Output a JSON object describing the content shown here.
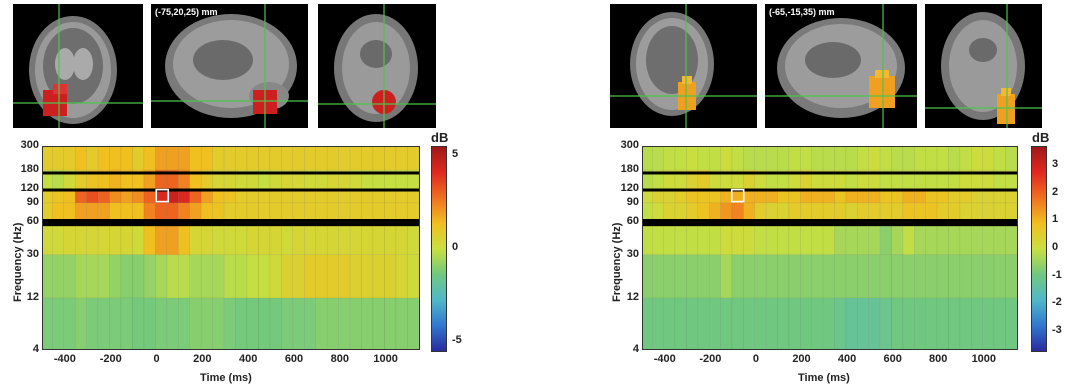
{
  "panels": [
    {
      "mri_coord": "(-75,20,25) mm",
      "chart_data": {
        "type": "heatmap",
        "ylabel": "Frequency (Hz)",
        "xlabel": "Time (ms)",
        "xticks": [
          "-400",
          "-200",
          "0",
          "200",
          "400",
          "600",
          "800",
          "1000"
        ],
        "xtick_values": [
          -400,
          -200,
          0,
          200,
          400,
          600,
          800,
          1000
        ],
        "yticks": [
          "4",
          "12",
          "30",
          "60",
          "90",
          "120",
          "180",
          "300"
        ],
        "yscale": "log",
        "xlim": [
          -500,
          1150
        ],
        "ylim": [
          4,
          300
        ],
        "colorbar_label": "dB",
        "colorbar_ticks": [
          "5",
          "0",
          "-5"
        ],
        "colorbar_values": [
          5,
          0,
          -5
        ],
        "clim": [
          -5.5,
          5.5
        ],
        "highlight": {
          "time_ms": 25,
          "freq_hz": 105
        },
        "masked_bands_hz": [
          [
            165,
            175
          ],
          [
            115,
            122
          ],
          [
            55,
            64
          ]
        ],
        "time_bins": [
          -480,
          -430,
          -380,
          -330,
          -280,
          -230,
          -180,
          -130,
          -80,
          -30,
          20,
          70,
          120,
          170,
          220,
          270,
          320,
          370,
          420,
          470,
          520,
          570,
          620,
          670,
          720,
          770,
          820,
          870,
          920,
          970,
          1020,
          1070,
          1120
        ],
        "freq_bins": [
          300,
          180,
          120,
          90,
          60,
          30,
          12,
          4
        ],
        "values": [
          [
            1.5,
            1.5,
            1.5,
            2,
            1.5,
            2,
            2,
            2,
            1.5,
            2,
            2.5,
            2.5,
            2.5,
            2,
            2,
            1.5,
            1.5,
            1.5,
            1.5,
            1.5,
            1.5,
            1.5,
            1.5,
            1.5,
            1.5,
            1.5,
            1.5,
            1.5,
            1.5,
            1.5,
            1.5,
            1.5,
            1.5
          ],
          [
            0.5,
            0.3,
            0.8,
            1.5,
            1.8,
            2,
            2.2,
            2,
            2,
            2.5,
            3.5,
            3.5,
            3,
            2,
            1.5,
            1,
            1,
            0.8,
            0.8,
            0.5,
            0.8,
            1,
            1,
            0.8,
            0.8,
            1,
            1,
            0.8,
            0.5,
            0.5,
            0.5,
            0.5,
            0.5
          ],
          [
            1.5,
            1.8,
            2,
            3.5,
            3.8,
            3.5,
            2.8,
            2.5,
            2.8,
            3.5,
            4.5,
            4.8,
            4.5,
            3.5,
            2.5,
            2,
            1.8,
            1.5,
            1.5,
            1.5,
            1.5,
            1.5,
            1.5,
            1.5,
            1.5,
            1.5,
            1.5,
            1.5,
            1.5,
            1.5,
            1.5,
            1.5,
            1.5
          ],
          [
            1.5,
            2,
            2,
            2.5,
            2.5,
            2.5,
            2,
            2,
            2,
            3,
            3.5,
            3.5,
            3,
            2.5,
            2,
            1.8,
            1.5,
            1.5,
            1.5,
            1.5,
            1.5,
            1.5,
            1.5,
            1.5,
            1.5,
            1.5,
            1.5,
            1.5,
            1.5,
            1.5,
            1.5,
            1.5,
            1.5
          ],
          [
            0.8,
            0.8,
            1,
            1,
            1,
            1,
            1,
            1,
            0.8,
            2,
            2.5,
            2.5,
            2,
            1,
            1,
            0.8,
            0.8,
            0.8,
            1,
            1,
            1,
            0.8,
            1,
            1,
            1,
            1,
            1,
            1,
            1,
            1,
            1,
            1,
            0.8
          ],
          [
            -0.3,
            -0.3,
            -0.3,
            0,
            0,
            0,
            -0.3,
            -0.5,
            -0.5,
            -0.3,
            0,
            0.3,
            0.3,
            0,
            0,
            0,
            0.3,
            0.3,
            0.5,
            0.5,
            0.8,
            1.2,
            1.2,
            1.5,
            1.5,
            1.5,
            1.5,
            1.3,
            1.2,
            1.2,
            1.2,
            1,
            0.8
          ],
          [
            -0.7,
            -0.7,
            -0.7,
            -0.5,
            -0.7,
            -0.7,
            -0.7,
            -0.7,
            -0.8,
            -0.8,
            -0.7,
            -0.7,
            -0.7,
            -0.5,
            -0.5,
            -0.5,
            -0.7,
            -0.8,
            -0.8,
            -0.8,
            -0.8,
            -0.7,
            -0.7,
            -0.7,
            -0.5,
            -0.5,
            -0.5,
            -0.5,
            -0.5,
            -0.5,
            -0.5,
            -0.5,
            -0.5
          ]
        ]
      }
    },
    {
      "mri_coord": "(-65,-15,35) mm",
      "chart_data": {
        "type": "heatmap",
        "ylabel": "Frequency (Hz)",
        "xlabel": "Time (ms)",
        "xticks": [
          "-400",
          "-200",
          "0",
          "200",
          "400",
          "600",
          "800",
          "1000"
        ],
        "xtick_values": [
          -400,
          -200,
          0,
          200,
          400,
          600,
          800,
          1000
        ],
        "yticks": [
          "4",
          "12",
          "30",
          "60",
          "90",
          "120",
          "180",
          "300"
        ],
        "yscale": "log",
        "xlim": [
          -500,
          1150
        ],
        "ylim": [
          4,
          300
        ],
        "colorbar_label": "dB",
        "colorbar_ticks": [
          "3",
          "2",
          "1",
          "0",
          "-1",
          "-2",
          "-3"
        ],
        "colorbar_values": [
          3,
          2,
          1,
          0,
          -1,
          -2,
          -3
        ],
        "clim": [
          -3.7,
          3.7
        ],
        "highlight": {
          "time_ms": -80,
          "freq_hz": 105
        },
        "masked_bands_hz": [
          [
            165,
            175
          ],
          [
            115,
            122
          ],
          [
            55,
            64
          ]
        ],
        "time_bins": [
          -480,
          -430,
          -380,
          -330,
          -280,
          -230,
          -180,
          -130,
          -80,
          -30,
          20,
          70,
          120,
          170,
          220,
          270,
          320,
          370,
          420,
          470,
          520,
          570,
          620,
          670,
          720,
          770,
          820,
          870,
          920,
          970,
          1020,
          1070,
          1120
        ],
        "freq_bins": [
          300,
          180,
          120,
          90,
          60,
          30,
          12,
          4
        ],
        "values": [
          [
            0.2,
            0.2,
            0.3,
            0.3,
            0.4,
            0.3,
            0.3,
            0.5,
            0.3,
            0.2,
            0.2,
            0.2,
            0.2,
            0.3,
            0.3,
            0.2,
            0.2,
            0.2,
            0.2,
            0.3,
            0.5,
            0.3,
            0.2,
            0.2,
            0.3,
            0.3,
            0.3,
            0.2,
            0.3,
            0.5,
            0.5,
            0.3,
            0.2
          ],
          [
            0.2,
            0.3,
            0.5,
            0.5,
            0.8,
            1,
            0.5,
            0.5,
            0.5,
            0.8,
            0.5,
            0.3,
            0.3,
            0.5,
            0.8,
            0.5,
            0.5,
            0.5,
            0.3,
            0.5,
            0.5,
            0.3,
            0.3,
            0.3,
            0.3,
            0.3,
            0.3,
            0.3,
            0.5,
            0.5,
            0.5,
            0.3,
            0.3
          ],
          [
            0.5,
            0.8,
            0.8,
            1,
            1.2,
            1.2,
            1.2,
            1.5,
            1.5,
            1.5,
            1.5,
            1.5,
            1.2,
            1.2,
            1.5,
            1.5,
            1.5,
            1.2,
            1.5,
            1.5,
            1.5,
            1.2,
            1.2,
            1.5,
            1.5,
            1.2,
            1.2,
            1,
            1,
            0.8,
            0.8,
            0.8,
            0.8
          ],
          [
            0.3,
            0.5,
            0.8,
            0.8,
            1,
            1.2,
            1.5,
            1.8,
            2,
            1.5,
            1,
            0.8,
            0.8,
            1,
            1,
            1,
            1,
            1,
            0.8,
            1,
            1,
            1,
            1,
            1.2,
            1.2,
            1.2,
            1,
            1,
            0.8,
            0.8,
            0.8,
            0.8,
            0.8
          ],
          [
            0.3,
            0.3,
            0.3,
            0.3,
            0.3,
            0.3,
            0.3,
            0.5,
            0.5,
            0.5,
            0.3,
            0.3,
            0.3,
            0.3,
            0.3,
            0.3,
            0.3,
            0,
            0,
            0,
            0,
            -0.3,
            0,
            0.3,
            0,
            0,
            0,
            0,
            0,
            0,
            0,
            0,
            0
          ],
          [
            -0.3,
            -0.3,
            -0.3,
            -0.3,
            -0.3,
            -0.3,
            -0.3,
            0,
            -0.3,
            -0.3,
            -0.3,
            -0.3,
            -0.3,
            -0.3,
            -0.3,
            -0.3,
            -0.3,
            -0.3,
            -0.3,
            -0.3,
            -0.3,
            -0.3,
            -0.3,
            -0.3,
            -0.3,
            -0.3,
            -0.3,
            -0.3,
            -0.3,
            -0.3,
            -0.3,
            -0.3,
            -0.3
          ],
          [
            -0.6,
            -0.6,
            -0.6,
            -0.6,
            -0.6,
            -0.6,
            -0.6,
            -0.6,
            -0.6,
            -0.6,
            -0.6,
            -0.6,
            -0.6,
            -0.6,
            -0.6,
            -0.6,
            -0.6,
            -0.8,
            -1,
            -1,
            -1,
            -0.8,
            -0.6,
            -0.6,
            -0.6,
            -0.6,
            -0.6,
            -0.6,
            -0.6,
            -0.6,
            -0.6,
            -0.6,
            -0.6
          ]
        ]
      }
    }
  ]
}
